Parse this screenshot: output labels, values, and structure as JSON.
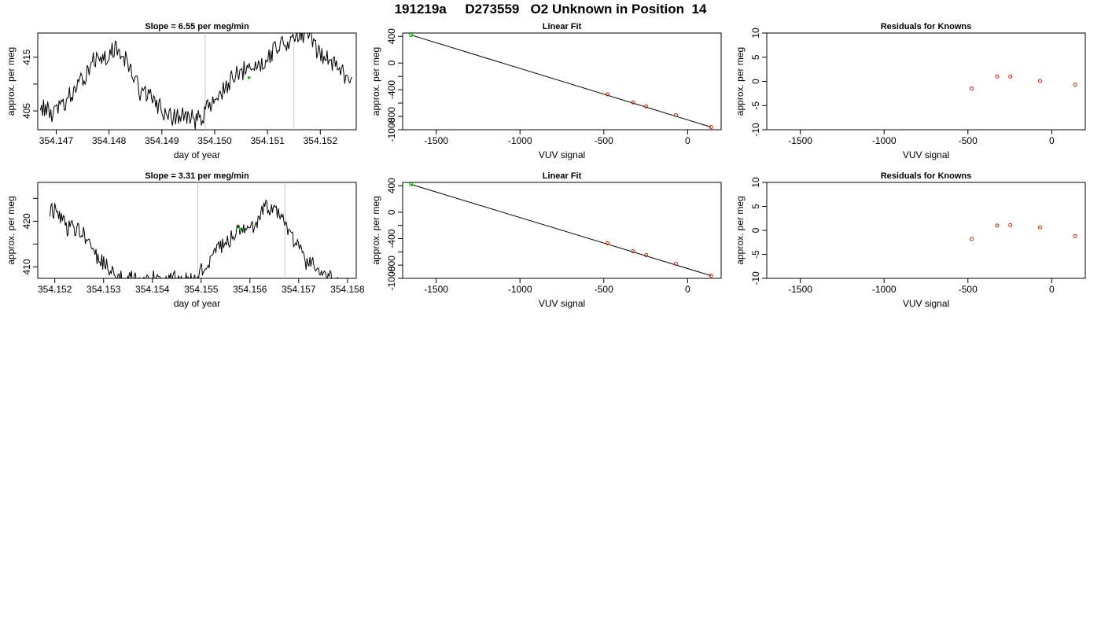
{
  "page_title": "191219a     D273559   O2 Unknown in Position  14",
  "colors": {
    "axis": "#000000",
    "line": "#000000",
    "vline": "#c8c8c8",
    "known": "#cc2200",
    "unknown": "#00cc00"
  },
  "chart_data": [
    {
      "type": "line",
      "title": "Slope =  6.55  per meg/min",
      "xlabel": "day of year",
      "ylabel": "approx. per meg",
      "xlim": [
        354.14665,
        354.15268
      ],
      "ylim": [
        401.5,
        419.5
      ],
      "xticks": [
        "354.147",
        "354.148",
        "354.149",
        "354.150",
        "354.151",
        "354.152"
      ],
      "yticks": [
        "405",
        "415"
      ],
      "x_start": 354.1467,
      "x_end": 354.1526,
      "anchors": [
        [
          0,
          406.0
        ],
        [
          0.04,
          404.5
        ],
        [
          0.12,
          409.0
        ],
        [
          0.17,
          415.0
        ],
        [
          0.2,
          414.0
        ],
        [
          0.25,
          417.0
        ],
        [
          0.28,
          413.5
        ],
        [
          0.32,
          409.0
        ],
        [
          0.37,
          406.5
        ],
        [
          0.42,
          403.5
        ],
        [
          0.46,
          404.5
        ],
        [
          0.5,
          403.0
        ],
        [
          0.55,
          406.5
        ],
        [
          0.63,
          411.5
        ],
        [
          0.66,
          412.5
        ],
        [
          0.71,
          414.0
        ],
        [
          0.77,
          417.5
        ],
        [
          0.82,
          418.5
        ],
        [
          0.86,
          419.5
        ],
        [
          0.9,
          415.5
        ],
        [
          0.95,
          413.5
        ],
        [
          1,
          411.0
        ]
      ],
      "vertical_lines": [
        354.14982,
        354.1515
      ],
      "unknown_point": [
        354.15065,
        411.2
      ]
    },
    {
      "type": "scatter",
      "title": "Linear Fit",
      "xlabel": "VUV signal",
      "ylabel": "approx. per meg",
      "xlim": [
        -1700,
        200
      ],
      "ylim": [
        -1000,
        450
      ],
      "xticks": [
        "-1500",
        "-1000",
        "-500",
        "0"
      ],
      "yticks": [
        "-1000",
        "-800",
        "-400",
        "0",
        "400"
      ],
      "fit_line": [
        [
          -1650,
          420
        ],
        [
          140,
          -960
        ]
      ],
      "knowns": [
        [
          -478,
          -470
        ],
        [
          -325,
          -590
        ],
        [
          -247,
          -650
        ],
        [
          -70,
          -780
        ],
        [
          140,
          -960
        ]
      ],
      "unknown": [
        -1650,
        420
      ]
    },
    {
      "type": "scatter",
      "title": "Residuals for Knowns",
      "xlabel": "VUV signal",
      "ylabel": "approx. per meg",
      "xlim": [
        -1700,
        200
      ],
      "ylim": [
        -10,
        10
      ],
      "xticks": [
        "-1500",
        "-1000",
        "-500",
        "0"
      ],
      "yticks": [
        "-10",
        "-5",
        "0",
        "5",
        "10"
      ],
      "points": [
        [
          -478,
          -1.5
        ],
        [
          -325,
          1.0
        ],
        [
          -247,
          1.0
        ],
        [
          -70,
          0.1
        ],
        [
          140,
          -0.7
        ]
      ]
    },
    {
      "type": "line",
      "title": "Slope =  3.31  per meg/min",
      "xlabel": "day of year",
      "ylabel": "approx. per meg",
      "xlim": [
        354.15165,
        354.15818
      ],
      "ylim": [
        407.5,
        428.5
      ],
      "xticks": [
        "354.152",
        "354.153",
        "354.154",
        "354.155",
        "354.156",
        "354.157",
        "354.158"
      ],
      "yticks": [
        "410",
        "420"
      ],
      "x_start": 354.1519,
      "x_end": 354.1578,
      "anchors": [
        [
          0,
          421.0
        ],
        [
          0.02,
          423.0
        ],
        [
          0.06,
          419.0
        ],
        [
          0.12,
          417.5
        ],
        [
          0.16,
          412.5
        ],
        [
          0.2,
          410.0
        ],
        [
          0.25,
          407.5
        ],
        [
          0.35,
          407.0
        ],
        [
          0.45,
          407.5
        ],
        [
          0.5,
          406.5
        ],
        [
          0.54,
          410.0
        ],
        [
          0.58,
          413.0
        ],
        [
          0.63,
          416.5
        ],
        [
          0.68,
          418.5
        ],
        [
          0.72,
          419.5
        ],
        [
          0.75,
          423.0
        ],
        [
          0.79,
          421.5
        ],
        [
          0.82,
          419.0
        ],
        [
          0.86,
          414.5
        ],
        [
          0.9,
          410.5
        ],
        [
          0.95,
          408.5
        ],
        [
          1,
          406.5
        ]
      ],
      "vertical_lines": [
        354.15493,
        354.15672
      ],
      "unknown_point": [
        354.1558,
        418.3
      ]
    },
    {
      "type": "scatter",
      "title": "Linear Fit",
      "xlabel": "VUV signal",
      "ylabel": "approx. per meg",
      "xlim": [
        -1700,
        200
      ],
      "ylim": [
        -1000,
        450
      ],
      "xticks": [
        "-1500",
        "-1000",
        "-500",
        "0"
      ],
      "yticks": [
        "-1000",
        "-800",
        "-400",
        "0",
        "400"
      ],
      "fit_line": [
        [
          -1650,
          420
        ],
        [
          140,
          -960
        ]
      ],
      "knowns": [
        [
          -478,
          -470
        ],
        [
          -325,
          -590
        ],
        [
          -247,
          -650
        ],
        [
          -70,
          -780
        ],
        [
          140,
          -960
        ]
      ],
      "unknown": [
        -1650,
        420
      ]
    },
    {
      "type": "scatter",
      "title": "Residuals for Knowns",
      "xlabel": "VUV signal",
      "ylabel": "approx. per meg",
      "xlim": [
        -1700,
        200
      ],
      "ylim": [
        -10,
        10
      ],
      "xticks": [
        "-1500",
        "-1000",
        "-500",
        "0"
      ],
      "yticks": [
        "-10",
        "-5",
        "0",
        "5",
        "10"
      ],
      "points": [
        [
          -478,
          -1.8
        ],
        [
          -325,
          1.0
        ],
        [
          -247,
          1.1
        ],
        [
          -70,
          0.6
        ],
        [
          140,
          -1.2
        ]
      ]
    }
  ]
}
